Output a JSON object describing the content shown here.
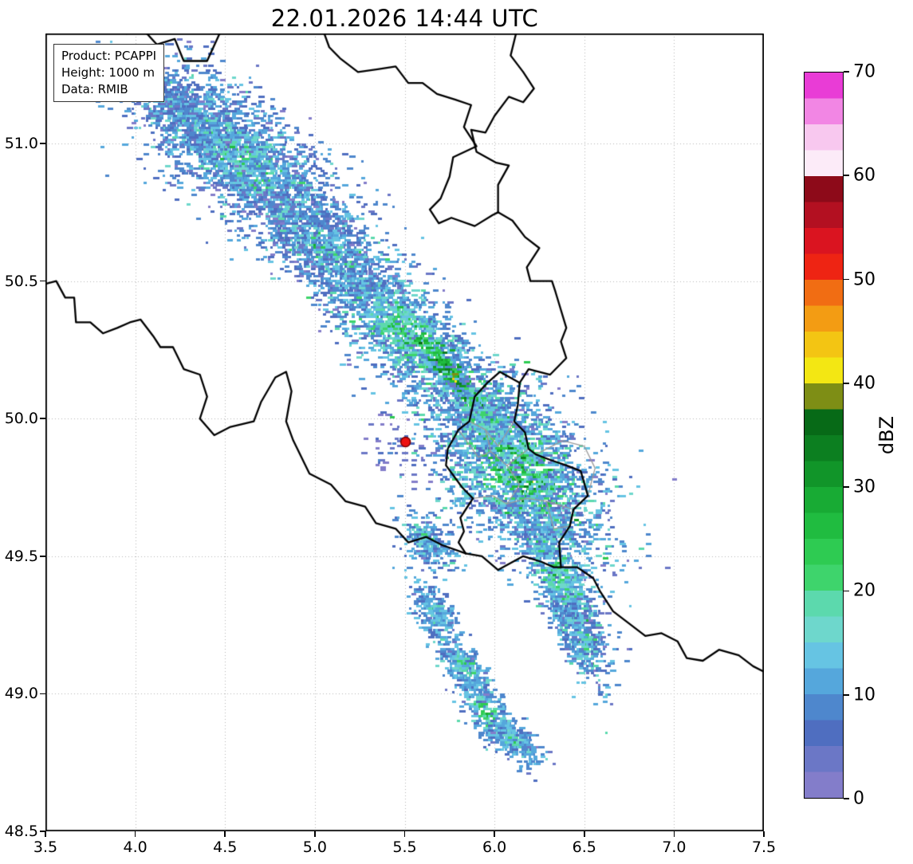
{
  "title": "22.01.2026 14:44 UTC",
  "info_box": {
    "product": "Product: PCAPPI",
    "height": "Height: 1000 m",
    "data": "Data: RMIB"
  },
  "colorbar": {
    "label": "dBZ",
    "min": 0,
    "max": 70,
    "ticks": [
      0,
      10,
      20,
      30,
      40,
      50,
      60,
      70
    ],
    "stops": [
      {
        "v": 0,
        "c": "#837dca"
      },
      {
        "v": 2.5,
        "c": "#6b77c6"
      },
      {
        "v": 5,
        "c": "#4f6ec0"
      },
      {
        "v": 7.5,
        "c": "#4e87cd"
      },
      {
        "v": 10,
        "c": "#55a7dc"
      },
      {
        "v": 12.5,
        "c": "#66c4e3"
      },
      {
        "v": 15,
        "c": "#6ed7cc"
      },
      {
        "v": 17.5,
        "c": "#5cd9ad"
      },
      {
        "v": 20,
        "c": "#3ed46c"
      },
      {
        "v": 22.5,
        "c": "#2ecb52"
      },
      {
        "v": 25,
        "c": "#20bc40"
      },
      {
        "v": 27.5,
        "c": "#18ab34"
      },
      {
        "v": 30,
        "c": "#119529"
      },
      {
        "v": 32.5,
        "c": "#0c7f20"
      },
      {
        "v": 35,
        "c": "#076a17"
      },
      {
        "v": 37.5,
        "c": "#7e8e15"
      },
      {
        "v": 40,
        "c": "#f3e713"
      },
      {
        "v": 42.5,
        "c": "#f3c513"
      },
      {
        "v": 45,
        "c": "#f39c13"
      },
      {
        "v": 47.5,
        "c": "#f16d13"
      },
      {
        "v": 50,
        "c": "#ee2413"
      },
      {
        "v": 52.5,
        "c": "#da1420"
      },
      {
        "v": 55,
        "c": "#b31021"
      },
      {
        "v": 57.5,
        "c": "#8d0a19"
      },
      {
        "v": 60,
        "c": "#fcebf8"
      },
      {
        "v": 62.5,
        "c": "#f8c8ef"
      },
      {
        "v": 65,
        "c": "#f286e4"
      },
      {
        "v": 67.5,
        "c": "#e93cd6"
      }
    ]
  },
  "chart_data": {
    "type": "heatmap",
    "title": "22.01.2026 14:44 UTC",
    "x_range": [
      3.5,
      7.5
    ],
    "y_range": [
      48.5,
      51.4
    ],
    "x_ticks": [
      3.5,
      4.0,
      4.5,
      5.0,
      5.5,
      6.0,
      6.5,
      7.0,
      7.5
    ],
    "y_ticks": [
      48.5,
      49.0,
      49.5,
      50.0,
      50.5,
      51.0
    ],
    "grid": true,
    "colorbar_label": "dBZ",
    "colorbar_range": [
      0,
      70
    ],
    "radar_site": {
      "lon": 5.505,
      "lat": 49.915
    },
    "colors": {
      "border_national": "#000000",
      "border_regional": "#9a9a9a",
      "grid": "#b5b5b5",
      "radar_marker_fill": "#ee1111",
      "radar_marker_edge": "#7a0000",
      "frame": "#000000"
    },
    "echo_regions": [
      {
        "lon": 4.27,
        "lat": 51.12,
        "along": 45,
        "cross": 16,
        "angle": 40,
        "n": 700,
        "base": 7,
        "spread": 3,
        "core": 5
      },
      {
        "lon": 4.6,
        "lat": 50.94,
        "along": 85,
        "cross": 34,
        "angle": 40,
        "n": 2600,
        "base": 8,
        "spread": 4,
        "core": 7
      },
      {
        "lon": 5.08,
        "lat": 50.6,
        "along": 55,
        "cross": 24,
        "angle": 40,
        "n": 1100,
        "base": 8,
        "spread": 4,
        "core": 7
      },
      {
        "lon": 5.5,
        "lat": 50.31,
        "along": 55,
        "cross": 26,
        "angle": 42,
        "n": 1500,
        "base": 10,
        "spread": 4,
        "core": 12
      },
      {
        "lon": 5.8,
        "lat": 50.13,
        "along": 32,
        "cross": 6,
        "angle": 50,
        "n": 450,
        "base": 27,
        "spread": 4,
        "core": 8
      },
      {
        "lon": 6.12,
        "lat": 49.82,
        "along": 70,
        "cross": 40,
        "angle": 48,
        "n": 2800,
        "base": 10,
        "spread": 5,
        "core": 13
      },
      {
        "lon": 5.92,
        "lat": 50.02,
        "along": 38,
        "cross": 20,
        "angle": 46,
        "n": 520,
        "base": 9,
        "spread": 4,
        "core": 9
      },
      {
        "lon": 6.36,
        "lat": 49.42,
        "along": 55,
        "cross": 16,
        "angle": 66,
        "n": 1000,
        "base": 10,
        "spread": 4,
        "core": 8
      },
      {
        "lon": 6.47,
        "lat": 49.2,
        "along": 30,
        "cross": 12,
        "angle": 68,
        "n": 380,
        "base": 9,
        "spread": 4,
        "core": 6
      },
      {
        "lon": 5.62,
        "lat": 49.56,
        "along": 20,
        "cross": 12,
        "angle": 45,
        "n": 280,
        "base": 9,
        "spread": 3,
        "core": 7
      },
      {
        "lon": 5.66,
        "lat": 49.3,
        "along": 22,
        "cross": 10,
        "angle": 60,
        "n": 260,
        "base": 9,
        "spread": 3,
        "core": 7
      },
      {
        "lon": 5.82,
        "lat": 49.1,
        "along": 24,
        "cross": 10,
        "angle": 52,
        "n": 280,
        "base": 10,
        "spread": 3,
        "core": 9
      },
      {
        "lon": 5.95,
        "lat": 48.93,
        "along": 26,
        "cross": 11,
        "angle": 48,
        "n": 320,
        "base": 10,
        "spread": 3,
        "core": 11
      },
      {
        "lon": 6.1,
        "lat": 48.83,
        "along": 22,
        "cross": 9,
        "angle": 35,
        "n": 240,
        "base": 9,
        "spread": 3,
        "core": 7
      },
      {
        "lon": 5.5,
        "lat": 49.88,
        "along": 28,
        "cross": 20,
        "angle": 40,
        "n": 60,
        "base": 3,
        "spread": 2,
        "core": 2
      }
    ],
    "borders_national": [
      {
        "name": "be-nl",
        "points": [
          [
            3.88,
            51.45
          ],
          [
            3.95,
            51.4
          ],
          [
            4.05,
            51.41
          ],
          [
            4.12,
            51.36
          ],
          [
            4.22,
            51.38
          ],
          [
            4.27,
            51.3
          ],
          [
            4.4,
            51.3
          ],
          [
            4.47,
            51.4
          ],
          [
            4.55,
            51.41
          ],
          [
            4.58,
            51.45
          ],
          [
            4.65,
            51.42
          ],
          [
            4.7,
            51.47
          ],
          [
            4.78,
            51.43
          ],
          [
            4.85,
            51.48
          ],
          [
            4.92,
            51.4
          ],
          [
            5.03,
            51.44
          ],
          [
            5.08,
            51.35
          ],
          [
            5.14,
            51.31
          ],
          [
            5.24,
            51.26
          ],
          [
            5.35,
            51.27
          ],
          [
            5.45,
            51.28
          ],
          [
            5.52,
            51.22
          ],
          [
            5.6,
            51.22
          ],
          [
            5.68,
            51.18
          ],
          [
            5.78,
            51.16
          ],
          [
            5.87,
            51.14
          ],
          [
            5.83,
            51.06
          ],
          [
            5.9,
            50.99
          ],
          [
            5.77,
            50.95
          ],
          [
            5.75,
            50.88
          ],
          [
            5.7,
            50.8
          ],
          [
            5.64,
            50.76
          ],
          [
            5.69,
            50.71
          ],
          [
            5.76,
            50.73
          ],
          [
            5.89,
            50.7
          ],
          [
            5.99,
            50.74
          ],
          [
            6.02,
            50.75
          ]
        ]
      },
      {
        "name": "nl-de",
        "points": [
          [
            6.2,
            51.45
          ],
          [
            6.12,
            51.4
          ],
          [
            6.09,
            51.32
          ],
          [
            6.16,
            51.26
          ],
          [
            6.22,
            51.2
          ],
          [
            6.16,
            51.15
          ],
          [
            6.08,
            51.17
          ],
          [
            6.0,
            51.1
          ],
          [
            5.95,
            51.04
          ],
          [
            5.87,
            51.05
          ],
          [
            5.9,
            50.97
          ],
          [
            6.01,
            50.93
          ],
          [
            6.08,
            50.92
          ],
          [
            6.02,
            50.85
          ],
          [
            6.02,
            50.8
          ],
          [
            6.02,
            50.75
          ]
        ]
      },
      {
        "name": "be-de",
        "points": [
          [
            6.02,
            50.75
          ],
          [
            6.1,
            50.72
          ],
          [
            6.17,
            50.66
          ],
          [
            6.25,
            50.62
          ],
          [
            6.18,
            50.55
          ],
          [
            6.2,
            50.5
          ],
          [
            6.32,
            50.5
          ],
          [
            6.34,
            50.46
          ],
          [
            6.4,
            50.33
          ],
          [
            6.37,
            50.28
          ],
          [
            6.4,
            50.22
          ],
          [
            6.31,
            50.16
          ],
          [
            6.19,
            50.18
          ],
          [
            6.14,
            50.13
          ]
        ]
      },
      {
        "name": "be-lu",
        "points": [
          [
            6.14,
            50.13
          ],
          [
            6.03,
            50.17
          ],
          [
            5.96,
            50.13
          ],
          [
            5.89,
            50.08
          ],
          [
            5.86,
            49.99
          ],
          [
            5.8,
            49.96
          ],
          [
            5.74,
            49.89
          ],
          [
            5.73,
            49.83
          ],
          [
            5.82,
            49.75
          ],
          [
            5.88,
            49.71
          ],
          [
            5.81,
            49.64
          ],
          [
            5.83,
            49.59
          ],
          [
            5.8,
            49.55
          ],
          [
            5.84,
            49.51
          ]
        ]
      },
      {
        "name": "lu-fr",
        "points": [
          [
            5.84,
            49.51
          ],
          [
            5.93,
            49.5
          ],
          [
            6.02,
            49.45
          ],
          [
            6.16,
            49.5
          ],
          [
            6.26,
            49.48
          ],
          [
            6.33,
            49.46
          ],
          [
            6.37,
            49.46
          ]
        ]
      },
      {
        "name": "lu-de",
        "points": [
          [
            6.14,
            50.13
          ],
          [
            6.13,
            50.05
          ],
          [
            6.11,
            49.99
          ],
          [
            6.17,
            49.95
          ],
          [
            6.19,
            49.89
          ],
          [
            6.23,
            49.87
          ],
          [
            6.31,
            49.85
          ],
          [
            6.4,
            49.83
          ],
          [
            6.48,
            49.81
          ],
          [
            6.52,
            49.72
          ],
          [
            6.44,
            49.67
          ],
          [
            6.42,
            49.61
          ],
          [
            6.36,
            49.55
          ],
          [
            6.37,
            49.46
          ]
        ]
      },
      {
        "name": "be-fr",
        "points": [
          [
            3.5,
            50.49
          ],
          [
            3.56,
            50.5
          ],
          [
            3.61,
            50.44
          ],
          [
            3.66,
            50.44
          ],
          [
            3.67,
            50.35
          ],
          [
            3.75,
            50.35
          ],
          [
            3.82,
            50.31
          ],
          [
            3.9,
            50.33
          ],
          [
            3.97,
            50.35
          ],
          [
            4.03,
            50.36
          ],
          [
            4.1,
            50.3
          ],
          [
            4.14,
            50.26
          ],
          [
            4.21,
            50.26
          ],
          [
            4.27,
            50.18
          ],
          [
            4.36,
            50.16
          ],
          [
            4.4,
            50.08
          ],
          [
            4.36,
            50.0
          ],
          [
            4.44,
            49.94
          ],
          [
            4.53,
            49.97
          ],
          [
            4.66,
            49.99
          ],
          [
            4.7,
            50.06
          ],
          [
            4.78,
            50.15
          ],
          [
            4.84,
            50.17
          ],
          [
            4.87,
            50.1
          ],
          [
            4.84,
            49.99
          ],
          [
            4.88,
            49.92
          ],
          [
            4.97,
            49.8
          ],
          [
            5.09,
            49.76
          ],
          [
            5.17,
            49.7
          ],
          [
            5.28,
            49.68
          ],
          [
            5.34,
            49.62
          ],
          [
            5.45,
            49.6
          ],
          [
            5.52,
            49.55
          ],
          [
            5.62,
            49.57
          ],
          [
            5.71,
            49.54
          ],
          [
            5.84,
            49.51
          ]
        ]
      },
      {
        "name": "fr-de",
        "points": [
          [
            6.37,
            49.46
          ],
          [
            6.46,
            49.46
          ],
          [
            6.55,
            49.42
          ],
          [
            6.59,
            49.37
          ],
          [
            6.66,
            49.3
          ],
          [
            6.74,
            49.26
          ],
          [
            6.84,
            49.21
          ],
          [
            6.93,
            49.22
          ],
          [
            7.02,
            49.19
          ],
          [
            7.07,
            49.13
          ],
          [
            7.16,
            49.12
          ],
          [
            7.25,
            49.16
          ],
          [
            7.36,
            49.14
          ],
          [
            7.44,
            49.1
          ],
          [
            7.5,
            49.08
          ]
        ]
      }
    ],
    "borders_regional": [
      {
        "name": "regional-1",
        "points": [
          [
            5.86,
            49.99
          ],
          [
            5.95,
            49.96
          ],
          [
            6.02,
            49.9
          ],
          [
            6.11,
            49.99
          ]
        ]
      },
      {
        "name": "regional-2",
        "points": [
          [
            5.95,
            49.96
          ],
          [
            5.98,
            49.88
          ],
          [
            6.07,
            49.83
          ],
          [
            6.19,
            49.89
          ]
        ]
      },
      {
        "name": "regional-3",
        "points": [
          [
            5.8,
            49.96
          ],
          [
            5.91,
            49.86
          ],
          [
            5.98,
            49.88
          ]
        ]
      },
      {
        "name": "regional-4",
        "points": [
          [
            5.88,
            49.71
          ],
          [
            5.99,
            49.72
          ],
          [
            6.07,
            49.69
          ],
          [
            6.18,
            49.71
          ],
          [
            6.29,
            49.7
          ],
          [
            6.44,
            49.67
          ]
        ]
      },
      {
        "name": "regional-5",
        "points": [
          [
            6.07,
            49.83
          ],
          [
            6.14,
            49.76
          ],
          [
            6.07,
            49.69
          ]
        ]
      },
      {
        "name": "regional-6",
        "points": [
          [
            6.23,
            49.87
          ],
          [
            6.38,
            49.92
          ],
          [
            6.5,
            49.9
          ],
          [
            6.56,
            49.82
          ],
          [
            6.52,
            49.72
          ]
        ]
      },
      {
        "name": "regional-7",
        "points": [
          [
            6.29,
            49.7
          ],
          [
            6.33,
            49.6
          ],
          [
            6.42,
            49.61
          ]
        ]
      }
    ]
  }
}
